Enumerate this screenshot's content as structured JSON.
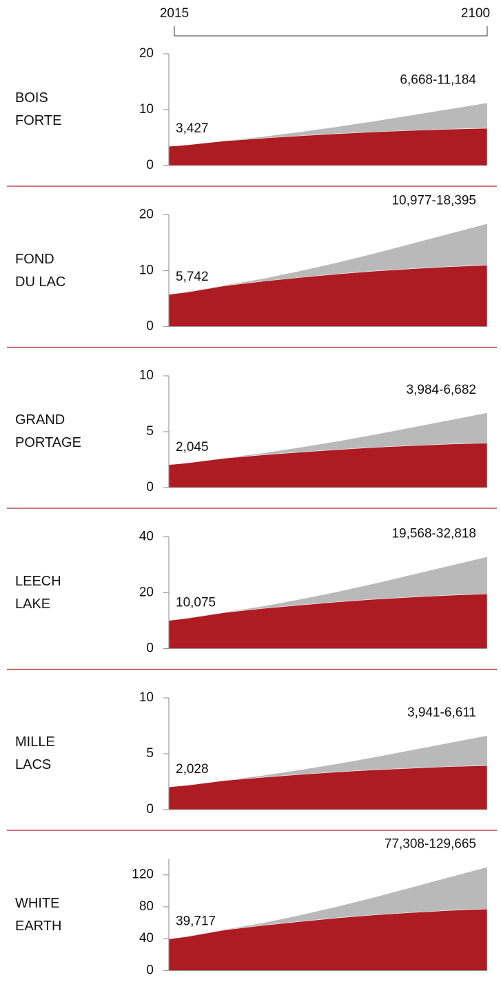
{
  "xlim": [
    2015,
    2100
  ],
  "chart_data": [
    {
      "type": "area",
      "title": "BOIS\nFORTE",
      "x": [
        2015,
        2020,
        2030,
        2040,
        2050,
        2060,
        2070,
        2080,
        2090,
        2100
      ],
      "series": [
        {
          "color": "#b9b9b9",
          "values": [
            3.427,
            3.74,
            4.44,
            5.13,
            5.99,
            6.92,
            7.93,
            9.01,
            10.1,
            11.184
          ]
        },
        {
          "color": "#ad1c22",
          "values": [
            3.427,
            3.69,
            4.4,
            4.89,
            5.31,
            5.7,
            6.02,
            6.28,
            6.51,
            6.668
          ]
        }
      ],
      "ylim": [
        0,
        20
      ],
      "yticks": [
        0,
        10,
        20
      ],
      "annotations": [
        "3,427",
        "6,668-11,184"
      ]
    },
    {
      "type": "area",
      "title": "FOND\nDU LAC",
      "x": [
        2015,
        2020,
        2030,
        2040,
        2050,
        2060,
        2070,
        2080,
        2090,
        2100
      ],
      "series": [
        {
          "color": "#b9b9b9",
          "values": [
            5.742,
            6.25,
            7.39,
            8.53,
            9.92,
            11.44,
            13.08,
            14.85,
            16.62,
            18.395
          ]
        },
        {
          "color": "#ad1c22",
          "values": [
            5.742,
            6.16,
            7.31,
            8.1,
            8.78,
            9.41,
            9.93,
            10.35,
            10.72,
            10.977
          ]
        }
      ],
      "ylim": [
        0,
        20
      ],
      "yticks": [
        0,
        10,
        20
      ],
      "annotations": [
        "5,742",
        "10,977-18,395"
      ]
    },
    {
      "type": "area",
      "title": "GRAND\nPORTAGE",
      "x": [
        2015,
        2020,
        2030,
        2040,
        2050,
        2060,
        2070,
        2080,
        2090,
        2100
      ],
      "series": [
        {
          "color": "#b9b9b9",
          "values": [
            2.045,
            2.23,
            2.65,
            3.07,
            3.58,
            4.13,
            4.74,
            5.38,
            6.03,
            6.682
          ]
        },
        {
          "color": "#ad1c22",
          "values": [
            2.045,
            2.2,
            2.63,
            2.92,
            3.17,
            3.4,
            3.6,
            3.75,
            3.89,
            3.984
          ]
        }
      ],
      "ylim": [
        0,
        10
      ],
      "yticks": [
        0,
        5,
        10
      ],
      "annotations": [
        "2,045",
        "3,984-6,682"
      ]
    },
    {
      "type": "area",
      "title": "LEECH\nLAKE",
      "x": [
        2015,
        2020,
        2030,
        2040,
        2050,
        2060,
        2070,
        2080,
        2090,
        2100
      ],
      "series": [
        {
          "color": "#b9b9b9",
          "values": [
            10.075,
            10.98,
            13.03,
            15.08,
            17.58,
            20.31,
            23.27,
            26.45,
            29.63,
            32.818
          ]
        },
        {
          "color": "#ad1c22",
          "values": [
            10.075,
            10.83,
            12.92,
            14.35,
            15.58,
            16.72,
            17.67,
            18.43,
            19.09,
            19.568
          ]
        }
      ],
      "ylim": [
        0,
        40
      ],
      "yticks": [
        0,
        20,
        40
      ],
      "annotations": [
        "10,075",
        "19,568-32,818"
      ]
    },
    {
      "type": "area",
      "title": "MILLE\nLACS",
      "x": [
        2015,
        2020,
        2030,
        2040,
        2050,
        2060,
        2070,
        2080,
        2090,
        2100
      ],
      "series": [
        {
          "color": "#b9b9b9",
          "values": [
            2.028,
            2.21,
            2.62,
            3.04,
            3.54,
            4.09,
            4.69,
            5.33,
            5.97,
            6.611
          ]
        },
        {
          "color": "#ad1c22",
          "values": [
            2.028,
            2.18,
            2.6,
            2.89,
            3.14,
            3.37,
            3.56,
            3.71,
            3.85,
            3.941
          ]
        }
      ],
      "ylim": [
        0,
        10
      ],
      "yticks": [
        0,
        5,
        10
      ],
      "annotations": [
        "2,028",
        "3,941-6,611"
      ]
    },
    {
      "type": "area",
      "title": "WHITE\nEARTH",
      "x": [
        2015,
        2020,
        2030,
        2040,
        2050,
        2060,
        2070,
        2080,
        2090,
        2100
      ],
      "series": [
        {
          "color": "#b9b9b9",
          "values": [
            39.717,
            43.31,
            51.41,
            59.51,
            69.4,
            80.19,
            91.89,
            104.48,
            117.07,
            129.665
          ]
        },
        {
          "color": "#ad1c22",
          "values": [
            39.717,
            42.72,
            50.99,
            56.63,
            61.52,
            66.03,
            69.79,
            72.8,
            75.43,
            77.308
          ]
        }
      ],
      "ylim": [
        0,
        140
      ],
      "yticks": [
        0,
        40,
        80,
        120
      ],
      "annotations": [
        "39,717",
        "77,308-129,665"
      ]
    }
  ]
}
